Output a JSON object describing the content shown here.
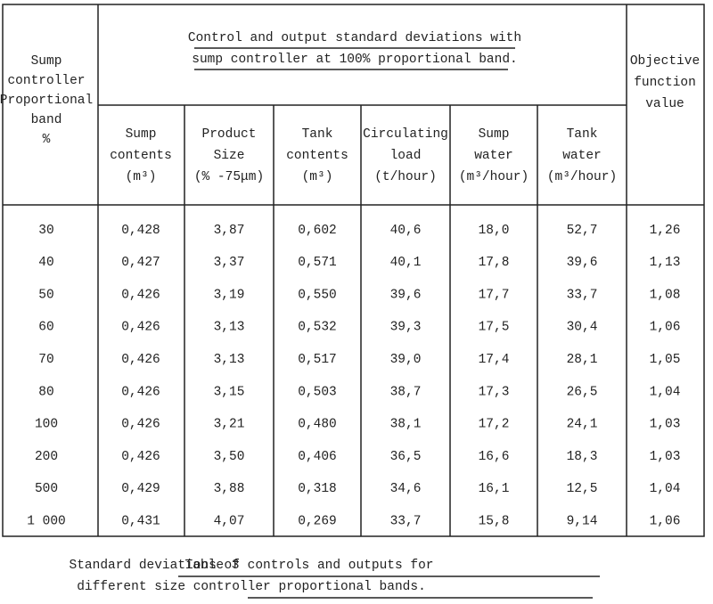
{
  "header": {
    "first_column": [
      "Sump",
      "controller",
      "Proportional",
      "band",
      "%"
    ],
    "group": [
      "Control and output standard deviations with",
      "sump controller at 100% proportional band."
    ],
    "columns": [
      [
        "Sump",
        "contents",
        "(m³)"
      ],
      [
        "Product",
        "Size",
        "(% -75μm)"
      ],
      [
        "Tank",
        "contents",
        "(m³)"
      ],
      [
        "Circulating",
        "load",
        "(t/hour)"
      ],
      [
        "Sump",
        "water",
        "(m³/hour)"
      ],
      [
        "Tank",
        "water",
        "(m³/hour)"
      ]
    ],
    "last_column": [
      "Objective",
      "function",
      "value"
    ]
  },
  "table": {
    "rows": [
      [
        "30",
        "0,428",
        "3,87",
        "0,602",
        "40,6",
        "18,0",
        "52,7",
        "1,26"
      ],
      [
        "40",
        "0,427",
        "3,37",
        "0,571",
        "40,1",
        "17,8",
        "39,6",
        "1,13"
      ],
      [
        "50",
        "0,426",
        "3,19",
        "0,550",
        "39,6",
        "17,7",
        "33,7",
        "1,08"
      ],
      [
        "60",
        "0,426",
        "3,13",
        "0,532",
        "39,3",
        "17,5",
        "30,4",
        "1,06"
      ],
      [
        "70",
        "0,426",
        "3,13",
        "0,517",
        "39,0",
        "17,4",
        "28,1",
        "1,05"
      ],
      [
        "80",
        "0,426",
        "3,15",
        "0,503",
        "38,7",
        "17,3",
        "26,5",
        "1,04"
      ],
      [
        "100",
        "0,426",
        "3,21",
        "0,480",
        "38,1",
        "17,2",
        "24,1",
        "1,03"
      ],
      [
        "200",
        "0,426",
        "3,50",
        "0,406",
        "36,5",
        "16,6",
        "18,3",
        "1,03"
      ],
      [
        "500",
        "0,429",
        "3,88",
        "0,318",
        "34,6",
        "16,1",
        "12,5",
        "1,04"
      ],
      [
        "1 000",
        "0,431",
        "4,07",
        "0,269",
        "33,7",
        "15,8",
        "9,14",
        "1,06"
      ]
    ]
  },
  "caption": {
    "label": "Table 3",
    "lines": [
      "Standard deviations of controls and outputs for",
      "different size controller proportional bands."
    ]
  }
}
